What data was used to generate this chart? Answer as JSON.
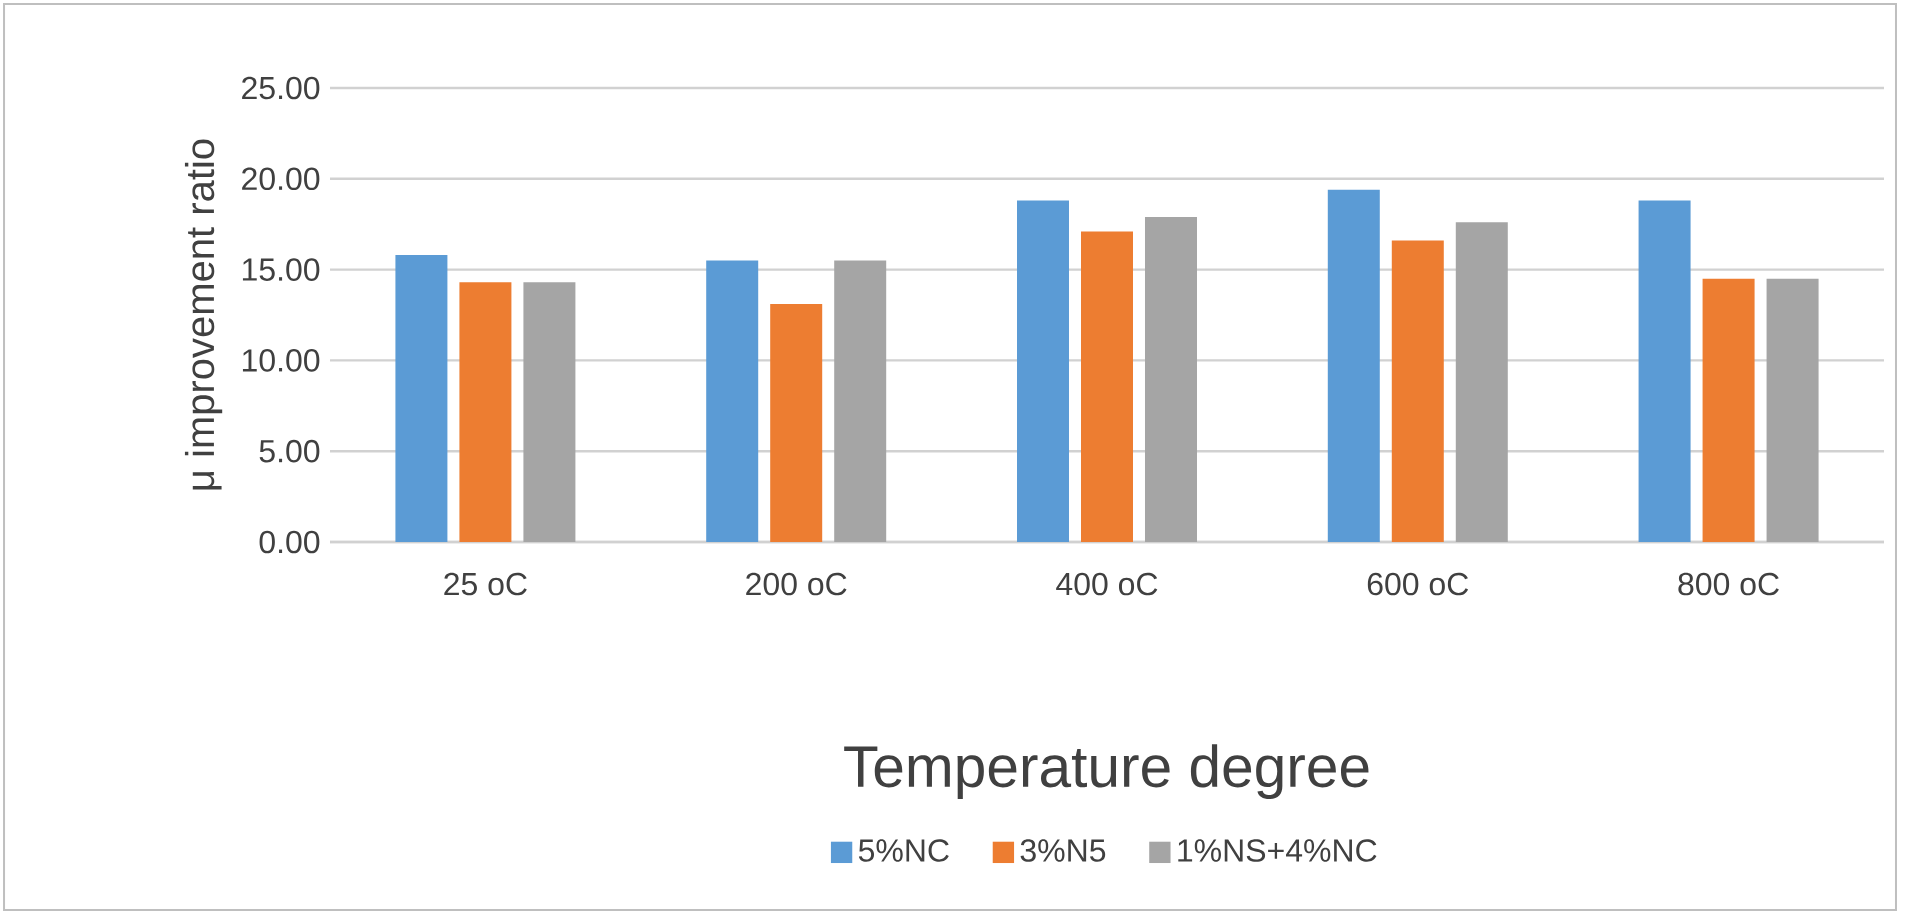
{
  "chart_data": {
    "type": "bar",
    "xlabel": "Temperature degree",
    "ylabel": "μ improvement ratio",
    "categories": [
      "25 oC",
      "200  oC",
      "400  oC",
      "600  oC",
      "800  oC"
    ],
    "series": [
      {
        "name": "5%NC",
        "color": "#5b9bd5",
        "values": [
          15.8,
          15.5,
          18.8,
          19.4,
          18.8
        ]
      },
      {
        "name": "3%N5",
        "color": "#ed7d31",
        "values": [
          14.3,
          13.1,
          17.1,
          16.6,
          14.5
        ]
      },
      {
        "name": "1%NS+4%NC",
        "color": "#a5a5a5",
        "values": [
          14.3,
          15.5,
          17.9,
          17.6,
          14.5
        ]
      }
    ],
    "ylim": [
      0,
      25
    ],
    "yticks": [
      {
        "value": 0,
        "label": "0.00"
      },
      {
        "value": 5,
        "label": "5.00"
      },
      {
        "value": 10,
        "label": "10.00"
      },
      {
        "value": 15,
        "label": "15.00"
      },
      {
        "value": 20,
        "label": "20.00"
      },
      {
        "value": 25,
        "label": "25.00"
      }
    ],
    "grid": "y",
    "legend": "bottom"
  }
}
